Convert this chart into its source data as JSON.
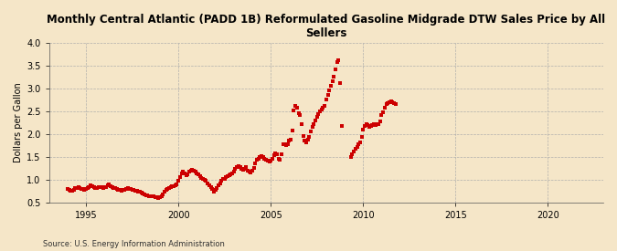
{
  "title": "Monthly Central Atlantic (PADD 1B) Reformulated Gasoline Midgrade DTW Sales Price by All\nSellers",
  "ylabel": "Dollars per Gallon",
  "source": "Source: U.S. Energy Information Administration",
  "background_color": "#f5e6c8",
  "marker_color": "#cc0000",
  "ylim": [
    0.5,
    4.0
  ],
  "yticks": [
    0.5,
    1.0,
    1.5,
    2.0,
    2.5,
    3.0,
    3.5,
    4.0
  ],
  "xlim_start": 1993.0,
  "xlim_end": 2023.0,
  "xticks": [
    1995,
    2000,
    2005,
    2010,
    2015,
    2020
  ],
  "data": [
    [
      1994.0,
      0.79
    ],
    [
      1994.083,
      0.77
    ],
    [
      1994.167,
      0.76
    ],
    [
      1994.25,
      0.75
    ],
    [
      1994.333,
      0.77
    ],
    [
      1994.417,
      0.81
    ],
    [
      1994.5,
      0.82
    ],
    [
      1994.583,
      0.83
    ],
    [
      1994.667,
      0.82
    ],
    [
      1994.75,
      0.8
    ],
    [
      1994.833,
      0.79
    ],
    [
      1994.917,
      0.77
    ],
    [
      1995.0,
      0.79
    ],
    [
      1995.083,
      0.82
    ],
    [
      1995.167,
      0.84
    ],
    [
      1995.25,
      0.87
    ],
    [
      1995.333,
      0.86
    ],
    [
      1995.417,
      0.84
    ],
    [
      1995.5,
      0.82
    ],
    [
      1995.583,
      0.82
    ],
    [
      1995.667,
      0.83
    ],
    [
      1995.75,
      0.84
    ],
    [
      1995.833,
      0.83
    ],
    [
      1995.917,
      0.81
    ],
    [
      1996.0,
      0.83
    ],
    [
      1996.083,
      0.84
    ],
    [
      1996.167,
      0.87
    ],
    [
      1996.25,
      0.89
    ],
    [
      1996.333,
      0.86
    ],
    [
      1996.417,
      0.84
    ],
    [
      1996.5,
      0.82
    ],
    [
      1996.583,
      0.81
    ],
    [
      1996.667,
      0.79
    ],
    [
      1996.75,
      0.78
    ],
    [
      1996.833,
      0.77
    ],
    [
      1996.917,
      0.76
    ],
    [
      1997.0,
      0.77
    ],
    [
      1997.083,
      0.78
    ],
    [
      1997.167,
      0.79
    ],
    [
      1997.25,
      0.81
    ],
    [
      1997.333,
      0.8
    ],
    [
      1997.417,
      0.79
    ],
    [
      1997.5,
      0.78
    ],
    [
      1997.583,
      0.77
    ],
    [
      1997.667,
      0.76
    ],
    [
      1997.75,
      0.75
    ],
    [
      1997.833,
      0.74
    ],
    [
      1997.917,
      0.73
    ],
    [
      1998.0,
      0.71
    ],
    [
      1998.083,
      0.69
    ],
    [
      1998.167,
      0.67
    ],
    [
      1998.25,
      0.66
    ],
    [
      1998.333,
      0.65
    ],
    [
      1998.417,
      0.64
    ],
    [
      1998.5,
      0.64
    ],
    [
      1998.583,
      0.64
    ],
    [
      1998.667,
      0.63
    ],
    [
      1998.75,
      0.62
    ],
    [
      1998.833,
      0.61
    ],
    [
      1998.917,
      0.6
    ],
    [
      1999.0,
      0.61
    ],
    [
      1999.083,
      0.64
    ],
    [
      1999.167,
      0.68
    ],
    [
      1999.25,
      0.73
    ],
    [
      1999.333,
      0.77
    ],
    [
      1999.417,
      0.79
    ],
    [
      1999.5,
      0.81
    ],
    [
      1999.583,
      0.83
    ],
    [
      1999.667,
      0.85
    ],
    [
      1999.75,
      0.86
    ],
    [
      1999.833,
      0.88
    ],
    [
      1999.917,
      0.9
    ],
    [
      2000.0,
      0.97
    ],
    [
      2000.083,
      1.05
    ],
    [
      2000.167,
      1.13
    ],
    [
      2000.25,
      1.17
    ],
    [
      2000.333,
      1.13
    ],
    [
      2000.417,
      1.09
    ],
    [
      2000.5,
      1.12
    ],
    [
      2000.583,
      1.17
    ],
    [
      2000.667,
      1.2
    ],
    [
      2000.75,
      1.22
    ],
    [
      2000.833,
      1.2
    ],
    [
      2000.917,
      1.17
    ],
    [
      2001.0,
      1.14
    ],
    [
      2001.083,
      1.12
    ],
    [
      2001.167,
      1.07
    ],
    [
      2001.25,
      1.04
    ],
    [
      2001.333,
      1.02
    ],
    [
      2001.417,
      1.0
    ],
    [
      2001.5,
      0.97
    ],
    [
      2001.583,
      0.92
    ],
    [
      2001.667,
      0.87
    ],
    [
      2001.75,
      0.84
    ],
    [
      2001.833,
      0.8
    ],
    [
      2001.917,
      0.74
    ],
    [
      2002.0,
      0.77
    ],
    [
      2002.083,
      0.82
    ],
    [
      2002.167,
      0.87
    ],
    [
      2002.25,
      0.92
    ],
    [
      2002.333,
      0.97
    ],
    [
      2002.417,
      1.02
    ],
    [
      2002.5,
      1.02
    ],
    [
      2002.583,
      1.05
    ],
    [
      2002.667,
      1.08
    ],
    [
      2002.75,
      1.1
    ],
    [
      2002.833,
      1.12
    ],
    [
      2002.917,
      1.14
    ],
    [
      2003.0,
      1.18
    ],
    [
      2003.083,
      1.23
    ],
    [
      2003.167,
      1.28
    ],
    [
      2003.25,
      1.3
    ],
    [
      2003.333,
      1.27
    ],
    [
      2003.417,
      1.24
    ],
    [
      2003.5,
      1.22
    ],
    [
      2003.583,
      1.24
    ],
    [
      2003.667,
      1.27
    ],
    [
      2003.75,
      1.2
    ],
    [
      2003.833,
      1.18
    ],
    [
      2003.917,
      1.16
    ],
    [
      2004.0,
      1.2
    ],
    [
      2004.083,
      1.26
    ],
    [
      2004.167,
      1.36
    ],
    [
      2004.25,
      1.43
    ],
    [
      2004.333,
      1.46
    ],
    [
      2004.417,
      1.49
    ],
    [
      2004.5,
      1.51
    ],
    [
      2004.583,
      1.49
    ],
    [
      2004.667,
      1.46
    ],
    [
      2004.75,
      1.43
    ],
    [
      2004.833,
      1.41
    ],
    [
      2004.917,
      1.39
    ],
    [
      2005.0,
      1.41
    ],
    [
      2005.083,
      1.46
    ],
    [
      2005.167,
      1.53
    ],
    [
      2005.25,
      1.57
    ],
    [
      2005.333,
      1.56
    ],
    [
      2005.417,
      1.46
    ],
    [
      2005.5,
      1.44
    ],
    [
      2005.583,
      1.56
    ],
    [
      2005.667,
      1.78
    ],
    [
      2005.75,
      1.77
    ],
    [
      2005.833,
      1.75
    ],
    [
      2005.917,
      1.78
    ],
    [
      2006.0,
      1.85
    ],
    [
      2006.083,
      1.88
    ],
    [
      2006.167,
      2.08
    ],
    [
      2006.25,
      2.52
    ],
    [
      2006.333,
      2.62
    ],
    [
      2006.417,
      2.57
    ],
    [
      2006.5,
      2.46
    ],
    [
      2006.583,
      2.42
    ],
    [
      2006.667,
      2.22
    ],
    [
      2006.75,
      1.95
    ],
    [
      2006.833,
      1.85
    ],
    [
      2006.917,
      1.82
    ],
    [
      2007.0,
      1.88
    ],
    [
      2007.083,
      1.93
    ],
    [
      2007.167,
      2.05
    ],
    [
      2007.25,
      2.15
    ],
    [
      2007.333,
      2.22
    ],
    [
      2007.417,
      2.3
    ],
    [
      2007.5,
      2.38
    ],
    [
      2007.583,
      2.43
    ],
    [
      2007.667,
      2.5
    ],
    [
      2007.75,
      2.53
    ],
    [
      2007.833,
      2.58
    ],
    [
      2007.917,
      2.62
    ],
    [
      2008.0,
      2.75
    ],
    [
      2008.083,
      2.85
    ],
    [
      2008.167,
      2.95
    ],
    [
      2008.25,
      3.05
    ],
    [
      2008.333,
      3.15
    ],
    [
      2008.417,
      3.25
    ],
    [
      2008.5,
      3.42
    ],
    [
      2008.583,
      3.58
    ],
    [
      2008.667,
      3.62
    ],
    [
      2008.75,
      3.12
    ],
    [
      2008.833,
      2.18
    ],
    [
      2009.333,
      1.5
    ],
    [
      2009.417,
      1.55
    ],
    [
      2009.5,
      1.62
    ],
    [
      2009.583,
      1.68
    ],
    [
      2009.667,
      1.72
    ],
    [
      2009.75,
      1.77
    ],
    [
      2009.833,
      1.82
    ],
    [
      2009.917,
      1.93
    ],
    [
      2010.0,
      2.1
    ],
    [
      2010.083,
      2.18
    ],
    [
      2010.167,
      2.22
    ],
    [
      2010.25,
      2.2
    ],
    [
      2010.333,
      2.15
    ],
    [
      2010.417,
      2.18
    ],
    [
      2010.5,
      2.19
    ],
    [
      2010.583,
      2.21
    ],
    [
      2010.667,
      2.19
    ],
    [
      2010.75,
      2.21
    ],
    [
      2010.833,
      2.22
    ],
    [
      2010.917,
      2.28
    ],
    [
      2011.0,
      2.42
    ],
    [
      2011.083,
      2.48
    ],
    [
      2011.167,
      2.58
    ],
    [
      2011.25,
      2.66
    ],
    [
      2011.333,
      2.68
    ],
    [
      2011.417,
      2.7
    ],
    [
      2011.5,
      2.72
    ],
    [
      2011.583,
      2.7
    ],
    [
      2011.667,
      2.68
    ],
    [
      2011.75,
      2.65
    ]
  ]
}
